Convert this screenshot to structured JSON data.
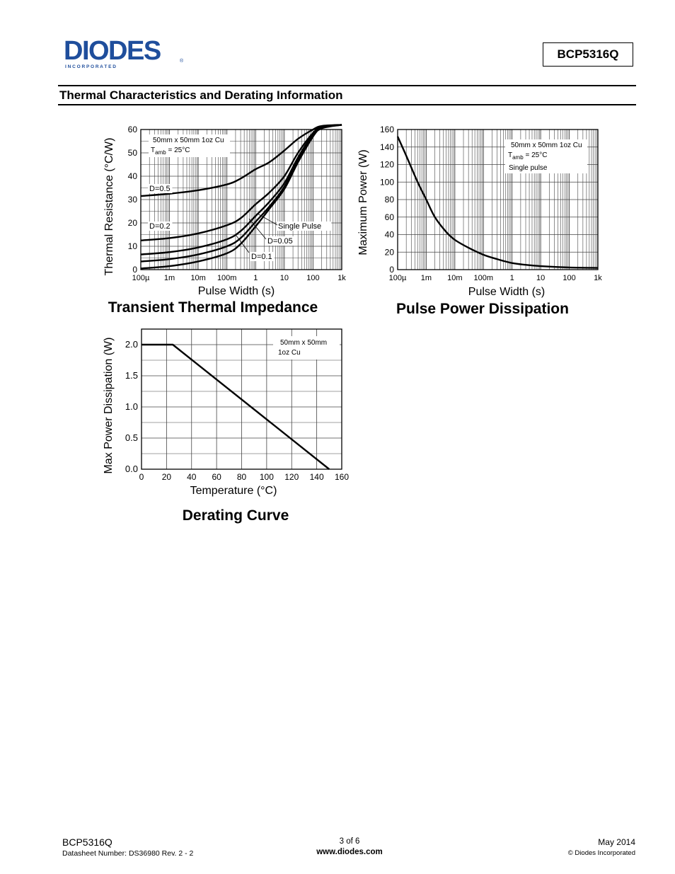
{
  "header": {
    "brand": "DIODES",
    "brand_tagline": "I N C O R P O R A T E D",
    "brand_mark": "®",
    "part_number": "BCP5316Q",
    "section_title": "Thermal Characteristics and Derating Information"
  },
  "chart_data": [
    {
      "type": "line",
      "title": "Transient Thermal Impedance",
      "xlabel": "Pulse Width (s)",
      "ylabel": "Thermal Resistance (°C/W)",
      "x_scale": "log",
      "xlim": [
        0.0001,
        1000
      ],
      "ylim": [
        0,
        60
      ],
      "x_ticks": [
        "100µ",
        "1m",
        "10m",
        "100m",
        "1",
        "10",
        "100",
        "1k"
      ],
      "y_ticks": [
        "0",
        "10",
        "20",
        "30",
        "40",
        "50",
        "60"
      ],
      "annotation": [
        "50mm x 50mm 1oz Cu",
        "T",
        "amb",
        " = 25°C"
      ],
      "curve_labels": [
        "D=0.5",
        "D=0.2",
        "D=0.05",
        "D=0.1",
        "Single Pulse"
      ],
      "grid": true,
      "series": [
        {
          "name": "D=0.5",
          "x": [
            0.0001,
            0.001,
            0.01,
            0.1,
            0.3,
            1,
            3,
            10,
            30,
            100,
            200,
            1000
          ],
          "y": [
            31.5,
            32.5,
            34,
            36.5,
            39,
            43,
            46,
            51,
            56,
            60,
            61.5,
            62
          ]
        },
        {
          "name": "D=0.2",
          "x": [
            0.0001,
            0.001,
            0.01,
            0.1,
            0.3,
            1,
            3,
            10,
            30,
            100,
            200,
            1000
          ],
          "y": [
            12.5,
            13.5,
            15.5,
            19,
            22,
            28,
            33,
            40,
            50,
            58.5,
            61,
            62
          ]
        },
        {
          "name": "D=0.1",
          "x": [
            0.0001,
            0.001,
            0.01,
            0.1,
            0.3,
            1,
            3,
            10,
            30,
            100,
            200,
            1000
          ],
          "y": [
            6.5,
            7.5,
            9.5,
            13,
            16.5,
            23,
            29,
            37,
            48,
            58,
            61,
            62
          ]
        },
        {
          "name": "D=0.05",
          "x": [
            0.0001,
            0.001,
            0.01,
            0.1,
            0.3,
            1,
            3,
            10,
            30,
            100,
            200,
            1000
          ],
          "y": [
            3.5,
            4.5,
            6.5,
            10,
            13.5,
            20.5,
            27,
            35.5,
            47,
            57.5,
            61,
            62
          ]
        },
        {
          "name": "Single Pulse",
          "x": [
            0.0001,
            0.001,
            0.01,
            0.1,
            0.3,
            1,
            3,
            10,
            30,
            100,
            200,
            1000
          ],
          "y": [
            0.5,
            1.5,
            3.5,
            7,
            11,
            18.5,
            26,
            34.5,
            46,
            57,
            60.5,
            62
          ]
        }
      ]
    },
    {
      "type": "line",
      "title": "Pulse Power Dissipation",
      "xlabel": "Pulse Width (s)",
      "ylabel": "Maximum Power (W)",
      "x_scale": "log",
      "xlim": [
        0.0001,
        1000
      ],
      "ylim": [
        0,
        160
      ],
      "x_ticks": [
        "100µ",
        "1m",
        "10m",
        "100m",
        "1",
        "10",
        "100",
        "1k"
      ],
      "y_ticks": [
        "0",
        "20",
        "40",
        "60",
        "80",
        "100",
        "120",
        "140",
        "160"
      ],
      "annotation": [
        "50mm x 50mm 1oz Cu",
        "T",
        "amb",
        " = 25°C",
        "Single pulse"
      ],
      "grid": true,
      "series": [
        {
          "name": "Single pulse",
          "x": [
            0.0001,
            0.0002,
            0.0005,
            0.001,
            0.002,
            0.005,
            0.01,
            0.03,
            0.1,
            0.3,
            1,
            3,
            10,
            100,
            1000
          ],
          "y": [
            152,
            130,
            100,
            80,
            60,
            43,
            34,
            25,
            17,
            12,
            7.5,
            5.5,
            4,
            2.5,
            2
          ]
        }
      ]
    },
    {
      "type": "line",
      "title": "Derating Curve",
      "xlabel": "Temperature (°C)",
      "ylabel": "Max Power Dissipation (W)",
      "xlim": [
        0,
        160
      ],
      "ylim": [
        0,
        2.25
      ],
      "x_ticks": [
        "0",
        "20",
        "40",
        "60",
        "80",
        "100",
        "120",
        "140",
        "160"
      ],
      "y_ticks": [
        "0.0",
        "0.5",
        "1.0",
        "1.5",
        "2.0"
      ],
      "annotation": [
        "50mm x 50mm",
        "1oz Cu"
      ],
      "grid": true,
      "series": [
        {
          "name": "Derating",
          "x": [
            0,
            25,
            150
          ],
          "y": [
            2.0,
            2.0,
            0.0
          ]
        }
      ]
    }
  ],
  "footer": {
    "part_number": "BCP5316Q",
    "datasheet_number": "Datasheet Number: DS36980 Rev. 2 - 2",
    "page": "3 of 6",
    "website": "www.diodes.com",
    "date": "May 2014",
    "copyright": "© Diodes Incorporated"
  }
}
